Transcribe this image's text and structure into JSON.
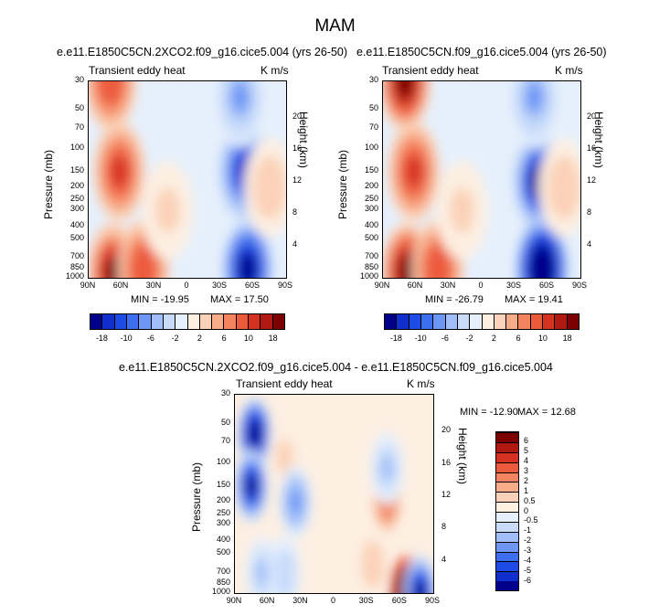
{
  "page": {
    "title": "MAM"
  },
  "colors": {
    "levels": [
      "#00008B",
      "#0F2ECC",
      "#1E4BE6",
      "#3C6EF0",
      "#6E96F5",
      "#A0BEF8",
      "#C8DCFA",
      "#E6F0FC",
      "#FDEFE2",
      "#FBD2B8",
      "#F8AC88",
      "#F48460",
      "#EC5A3C",
      "#D53222",
      "#B01810",
      "#7D0000"
    ]
  },
  "chart_data": [
    {
      "type": "heatmap",
      "title": "e.e11.E1850C5CN.2XCO2.f09_g16.cice5.004 (yrs 26-50)",
      "subtitle_left": "Transient eddy heat",
      "subtitle_right": "K m/s",
      "xlabel": "",
      "ylabel": "Pressure (mb)",
      "ylabel_right": "Height (km)",
      "x_ticks": [
        "90N",
        "60N",
        "30N",
        "0",
        "30S",
        "60S",
        "90S"
      ],
      "y_ticks": [
        "30",
        "50",
        "70",
        "100",
        "150",
        "200",
        "250",
        "300",
        "400",
        "500",
        "700",
        "850",
        "1000"
      ],
      "y_ticks_right": [
        "20",
        "16",
        "12",
        "8",
        "4"
      ],
      "min_label": "MIN = -19.95",
      "max_label": "MAX = 17.50",
      "colorbar_labels": [
        "-18",
        "-10",
        "-6",
        "-2",
        "2",
        "6",
        "10",
        "18"
      ],
      "features": [
        {
          "lat": 70,
          "p": 30,
          "value": 12
        },
        {
          "lat": 62,
          "p": 150,
          "value": 14
        },
        {
          "lat": 68,
          "p": 900,
          "value": 17
        },
        {
          "lat": 40,
          "p": 850,
          "value": 12
        },
        {
          "lat": 18,
          "p": 300,
          "value": 3
        },
        {
          "lat": -52,
          "p": 150,
          "value": -16
        },
        {
          "lat": -55,
          "p": 850,
          "value": -20
        },
        {
          "lat": -48,
          "p": 40,
          "value": -8
        },
        {
          "lat": -75,
          "p": 200,
          "value": 4
        }
      ]
    },
    {
      "type": "heatmap",
      "title": "e.e11.E1850C5CN.f09_g16.cice5.004 (yrs 26-50)",
      "subtitle_left": "Transient eddy heat",
      "subtitle_right": "K m/s",
      "xlabel": "",
      "ylabel": "Pressure (mb)",
      "ylabel_right": "Height (km)",
      "x_ticks": [
        "90N",
        "60N",
        "30N",
        "0",
        "30S",
        "60S",
        "90S"
      ],
      "y_ticks": [
        "30",
        "50",
        "70",
        "100",
        "150",
        "200",
        "250",
        "300",
        "400",
        "500",
        "700",
        "850",
        "1000"
      ],
      "y_ticks_right": [
        "20",
        "16",
        "12",
        "8",
        "4"
      ],
      "min_label": "MIN = -26.79",
      "max_label": "MAX = 19.41",
      "colorbar_labels": [
        "-18",
        "-10",
        "-6",
        "-2",
        "2",
        "6",
        "10",
        "18"
      ],
      "features": [
        {
          "lat": 70,
          "p": 30,
          "value": 19
        },
        {
          "lat": 62,
          "p": 150,
          "value": 14
        },
        {
          "lat": 68,
          "p": 900,
          "value": 18
        },
        {
          "lat": 40,
          "p": 850,
          "value": 12
        },
        {
          "lat": 18,
          "p": 300,
          "value": 3
        },
        {
          "lat": -52,
          "p": 180,
          "value": -18
        },
        {
          "lat": -55,
          "p": 850,
          "value": -26
        },
        {
          "lat": -48,
          "p": 40,
          "value": -8
        },
        {
          "lat": -75,
          "p": 200,
          "value": 4
        }
      ]
    },
    {
      "type": "heatmap",
      "title": "e.e11.E1850C5CN.2XCO2.f09_g16.cice5.004 - e.e11.E1850C5CN.f09_g16.cice5.004",
      "subtitle_left": "Transient eddy heat",
      "subtitle_right": "K m/s",
      "xlabel": "",
      "ylabel": "Pressure (mb)",
      "ylabel_right": "Height (km)",
      "x_ticks": [
        "90N",
        "60N",
        "30N",
        "0",
        "30S",
        "60S",
        "90S"
      ],
      "y_ticks": [
        "30",
        "50",
        "70",
        "100",
        "150",
        "200",
        "250",
        "300",
        "400",
        "500",
        "700",
        "850",
        "1000"
      ],
      "y_ticks_right": [
        "20",
        "16",
        "12",
        "8",
        "4"
      ],
      "min_label": "MIN = -12.90",
      "max_label": "MAX = 12.68",
      "colorbar_labels": [
        "-6",
        "-5",
        "-4",
        "-3",
        "-2",
        "-1",
        "-0.5",
        "0",
        "0.5",
        "1",
        "2",
        "3",
        "4",
        "5",
        "6"
      ],
      "features": [
        {
          "lat": 72,
          "p": 60,
          "value": -7
        },
        {
          "lat": 75,
          "p": 150,
          "value": -6
        },
        {
          "lat": 65,
          "p": 700,
          "value": -2
        },
        {
          "lat": 45,
          "p": 90,
          "value": 1
        },
        {
          "lat": 35,
          "p": 200,
          "value": -3
        },
        {
          "lat": 45,
          "p": 700,
          "value": -1.5
        },
        {
          "lat": -35,
          "p": 600,
          "value": 1.5
        },
        {
          "lat": -48,
          "p": 200,
          "value": 3
        },
        {
          "lat": -48,
          "p": 110,
          "value": -2
        },
        {
          "lat": -65,
          "p": 980,
          "value": 12
        },
        {
          "lat": -78,
          "p": 980,
          "value": -6
        }
      ]
    }
  ]
}
